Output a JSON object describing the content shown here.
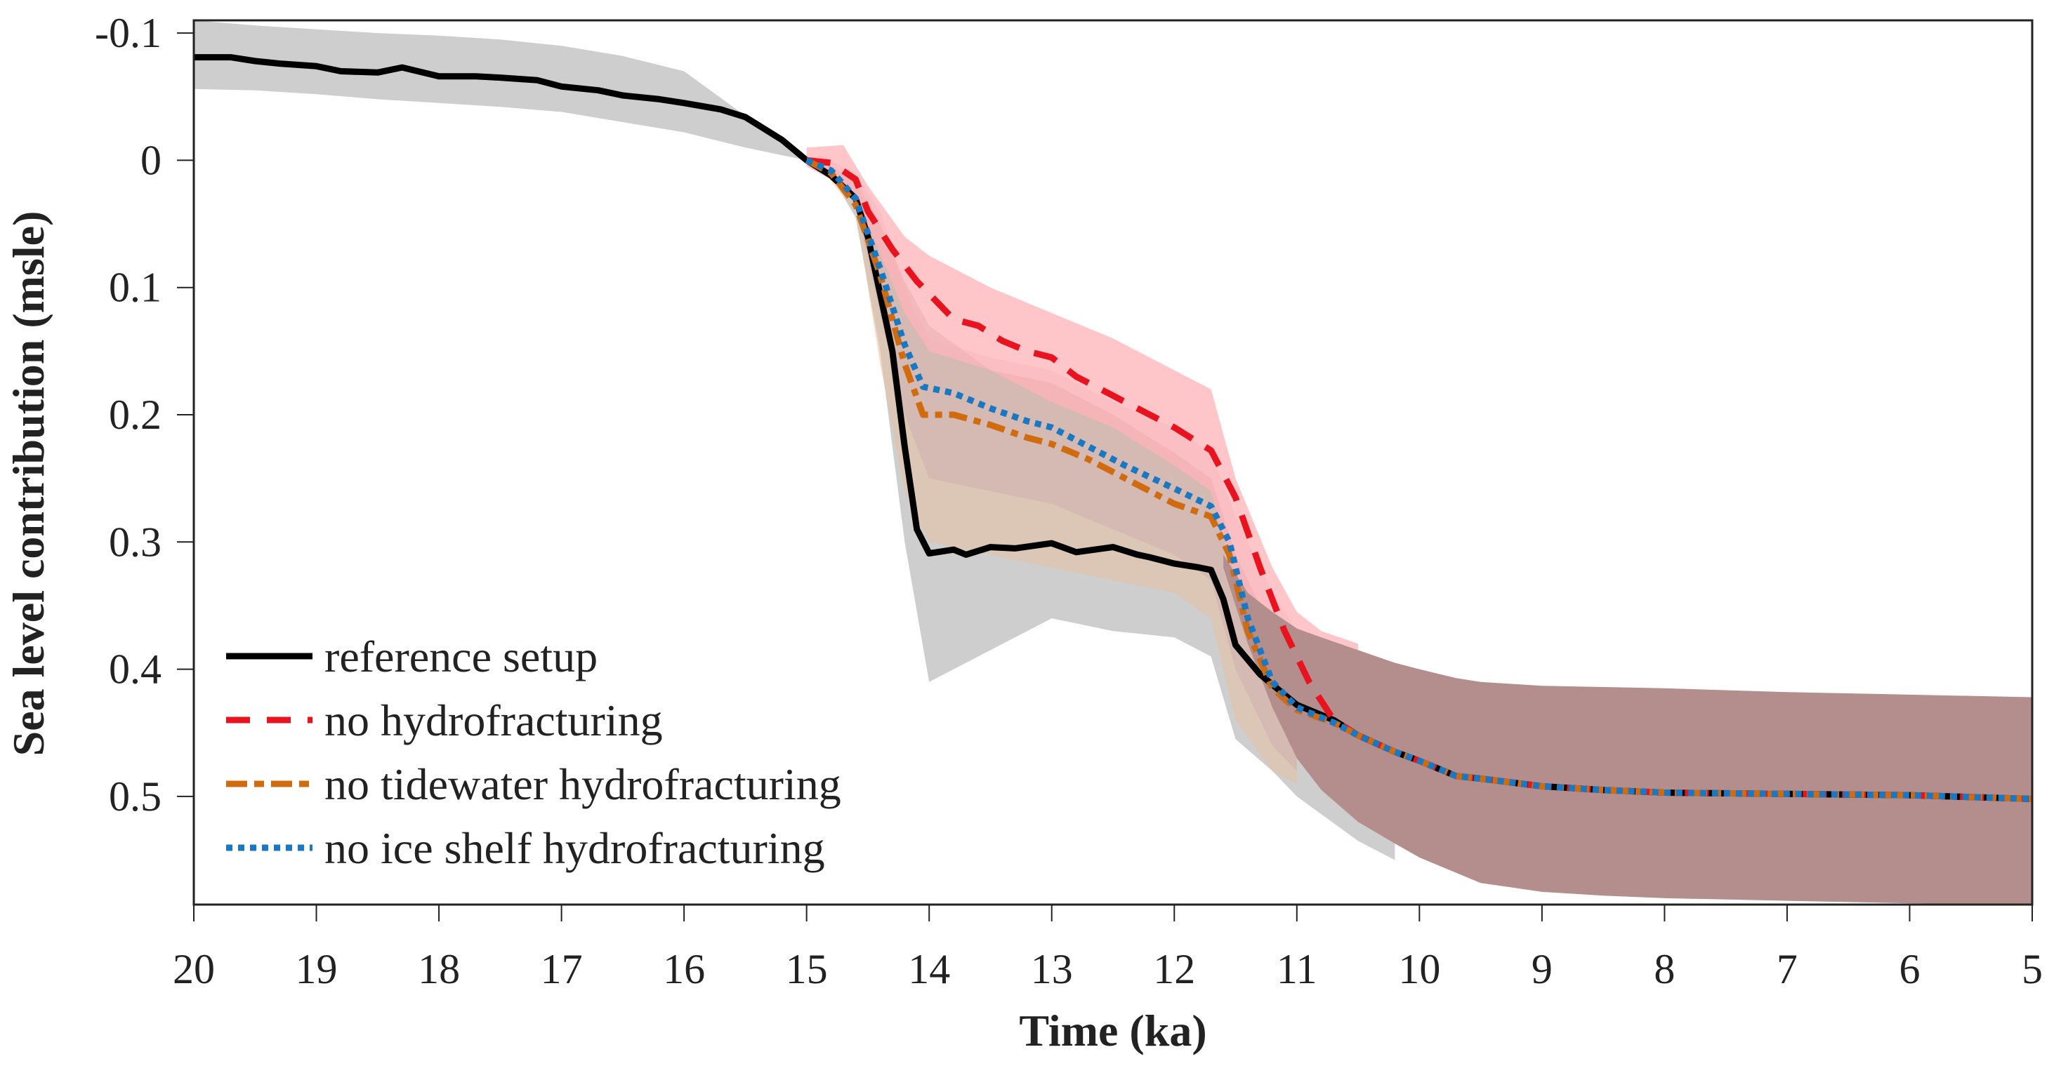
{
  "chart_data": {
    "type": "line",
    "title": "",
    "xlabel": "Time (ka)",
    "ylabel": "Sea level contribution (msle)",
    "xlim": [
      20,
      5
    ],
    "ylim": [
      -0.11,
      0.585
    ],
    "y_reversed": true,
    "x_reversed": true,
    "xticks": [
      20,
      19,
      18,
      17,
      16,
      15,
      14,
      13,
      12,
      11,
      10,
      9,
      8,
      7,
      6,
      5
    ],
    "xtick_labels": [
      "20",
      "19",
      "18",
      "17",
      "16",
      "15",
      "14",
      "13",
      "12",
      "11",
      "10",
      "9",
      "8",
      "7",
      "6",
      "5"
    ],
    "yticks": [
      -0.1,
      0,
      0.1,
      0.2,
      0.3,
      0.4,
      0.5
    ],
    "ytick_labels": [
      "-0.1",
      "0",
      "0.1",
      "0.2",
      "0.3",
      "0.4",
      "0.5"
    ],
    "grid": false,
    "legend_position": "bottom-left",
    "bands": [
      {
        "name": "reference setup range",
        "color": "#bdbdbd",
        "opacity": 0.75,
        "x": [
          20,
          19.5,
          19,
          18.5,
          18,
          17.5,
          17,
          16.5,
          16,
          15.5,
          15.2,
          15,
          14.8,
          14.6,
          14.4,
          14.2,
          14,
          13.5,
          13,
          12.5,
          12,
          11.7,
          11.5,
          11.2,
          11,
          10.5,
          10.2
        ],
        "upper": [
          -0.11,
          -0.106,
          -0.103,
          -0.1,
          -0.098,
          -0.095,
          -0.09,
          -0.082,
          -0.07,
          -0.035,
          -0.015,
          0,
          0.005,
          0.02,
          0.05,
          0.095,
          0.13,
          0.165,
          0.175,
          0.2,
          0.23,
          0.25,
          0.31,
          0.37,
          0.4,
          0.43,
          0.45
        ],
        "lower": [
          -0.056,
          -0.055,
          -0.052,
          -0.048,
          -0.045,
          -0.042,
          -0.038,
          -0.03,
          -0.022,
          -0.01,
          -0.004,
          0,
          0.012,
          0.045,
          0.15,
          0.3,
          0.41,
          0.385,
          0.36,
          0.37,
          0.375,
          0.39,
          0.455,
          0.48,
          0.5,
          0.535,
          0.55
        ]
      },
      {
        "name": "no tidewater hydrofracturing range",
        "color": "#e8bfa0",
        "opacity": 0.55,
        "x": [
          14.9,
          14.6,
          14.4,
          14.2,
          14,
          13.5,
          13,
          12.5,
          12,
          11.7,
          11.5,
          11.2,
          11
        ],
        "upper": [
          0,
          0.015,
          0.05,
          0.1,
          0.15,
          0.165,
          0.175,
          0.2,
          0.23,
          0.25,
          0.31,
          0.37,
          0.39
        ],
        "lower": [
          0.005,
          0.04,
          0.16,
          0.26,
          0.3,
          0.31,
          0.32,
          0.33,
          0.34,
          0.36,
          0.44,
          0.48,
          0.49
        ]
      },
      {
        "name": "no ice shelf hydrofracturing range",
        "color": "#c9a0b0",
        "opacity": 0.35,
        "x": [
          14.9,
          14.6,
          14.4,
          14.2,
          14,
          13.5,
          13,
          12.5,
          12,
          11.7,
          11.5,
          11.2,
          11
        ],
        "upper": [
          -0.005,
          0.01,
          0.04,
          0.1,
          0.14,
          0.155,
          0.165,
          0.19,
          0.21,
          0.23,
          0.28,
          0.34,
          0.37
        ],
        "lower": [
          0.005,
          0.035,
          0.12,
          0.2,
          0.25,
          0.26,
          0.27,
          0.29,
          0.31,
          0.33,
          0.4,
          0.46,
          0.48
        ]
      },
      {
        "name": "no hydrofracturing range",
        "color": "#ffb3b8",
        "opacity": 0.75,
        "x": [
          15,
          14.7,
          14.5,
          14.2,
          14,
          13.5,
          13,
          12.5,
          12,
          11.7,
          11.5,
          11.2,
          11,
          10.8,
          10.5
        ],
        "upper": [
          -0.01,
          -0.012,
          0.02,
          0.06,
          0.075,
          0.1,
          0.12,
          0.14,
          0.165,
          0.18,
          0.25,
          0.32,
          0.355,
          0.37,
          0.38
        ],
        "lower": [
          0.005,
          0.02,
          0.05,
          0.12,
          0.15,
          0.165,
          0.19,
          0.21,
          0.24,
          0.26,
          0.33,
          0.38,
          0.4,
          0.41,
          0.42
        ]
      },
      {
        "name": "overlapping ensemble range",
        "color": "#b38e8c",
        "opacity": 1.0,
        "x": [
          11.6,
          11.4,
          11.2,
          11,
          10.8,
          10.5,
          10.2,
          10,
          9.7,
          9.5,
          9,
          8.5,
          8,
          7,
          6,
          5
        ],
        "upper": [
          0.31,
          0.34,
          0.355,
          0.368,
          0.375,
          0.385,
          0.395,
          0.4,
          0.407,
          0.41,
          0.413,
          0.414,
          0.415,
          0.418,
          0.42,
          0.422
        ],
        "lower": [
          0.32,
          0.38,
          0.43,
          0.47,
          0.495,
          0.52,
          0.537,
          0.548,
          0.56,
          0.568,
          0.575,
          0.578,
          0.58,
          0.582,
          0.584,
          0.585
        ]
      }
    ],
    "series": [
      {
        "name": "reference setup",
        "color": "#000000",
        "style": "solid",
        "x": [
          20,
          19.7,
          19.5,
          19.3,
          19,
          18.8,
          18.5,
          18.3,
          18,
          17.7,
          17.5,
          17.2,
          17,
          16.7,
          16.5,
          16.2,
          16,
          15.7,
          15.5,
          15.2,
          15,
          14.8,
          14.6,
          14.5,
          14.4,
          14.3,
          14.2,
          14.1,
          14,
          13.8,
          13.7,
          13.5,
          13.3,
          13,
          12.8,
          12.5,
          12.3,
          12.2,
          12,
          11.8,
          11.7,
          11.6,
          11.5,
          11.3,
          11,
          10.7,
          10.5,
          10.2,
          10,
          9.7,
          9.5,
          9,
          8.5,
          8,
          7,
          6,
          5
        ],
        "y": [
          -0.081,
          -0.081,
          -0.078,
          -0.076,
          -0.074,
          -0.07,
          -0.069,
          -0.073,
          -0.066,
          -0.066,
          -0.065,
          -0.063,
          -0.058,
          -0.055,
          -0.051,
          -0.048,
          -0.045,
          -0.04,
          -0.034,
          -0.016,
          0,
          0.012,
          0.03,
          0.06,
          0.105,
          0.15,
          0.225,
          0.29,
          0.309,
          0.306,
          0.31,
          0.304,
          0.305,
          0.301,
          0.308,
          0.304,
          0.31,
          0.312,
          0.317,
          0.32,
          0.322,
          0.345,
          0.381,
          0.404,
          0.428,
          0.44,
          0.452,
          0.465,
          0.472,
          0.484,
          0.486,
          0.492,
          0.495,
          0.497,
          0.498,
          0.499,
          0.502
        ]
      },
      {
        "name": "no hydrofracturing",
        "color": "#e8131f",
        "style": "dashed",
        "x": [
          15,
          14.8,
          14.6,
          14.5,
          14.3,
          14.1,
          14,
          13.8,
          13.6,
          13.4,
          13.2,
          13,
          12.8,
          12.5,
          12.2,
          12,
          11.7,
          11.5,
          11.3,
          11.1,
          10.9,
          10.7,
          10.5,
          10.2,
          10,
          9.7,
          9.5,
          9,
          8.5,
          8,
          7,
          6,
          5
        ],
        "y": [
          0,
          0.002,
          0.015,
          0.04,
          0.07,
          0.095,
          0.105,
          0.125,
          0.13,
          0.142,
          0.15,
          0.155,
          0.17,
          0.185,
          0.2,
          0.21,
          0.228,
          0.265,
          0.32,
          0.37,
          0.41,
          0.44,
          0.452,
          0.465,
          0.472,
          0.484,
          0.486,
          0.492,
          0.495,
          0.497,
          0.498,
          0.499,
          0.502
        ]
      },
      {
        "name": "no tidewater hydrofracturing",
        "color": "#d16b0f",
        "style": "dashdot",
        "x": [
          15,
          14.8,
          14.6,
          14.4,
          14.2,
          14.05,
          13.8,
          13.5,
          13.2,
          13,
          12.7,
          12.4,
          12,
          11.7,
          11.55,
          11.4,
          11.2,
          11,
          10.7,
          10.5,
          10.2,
          10,
          9.7,
          9.5,
          9,
          8.5,
          8,
          7,
          6,
          5
        ],
        "y": [
          0,
          0.01,
          0.035,
          0.09,
          0.16,
          0.2,
          0.2,
          0.208,
          0.218,
          0.223,
          0.235,
          0.25,
          0.27,
          0.28,
          0.31,
          0.37,
          0.415,
          0.432,
          0.442,
          0.452,
          0.465,
          0.472,
          0.484,
          0.486,
          0.492,
          0.495,
          0.497,
          0.498,
          0.499,
          0.502
        ]
      },
      {
        "name": "no ice shelf hydrofracturing",
        "color": "#1a78c2",
        "style": "dotted",
        "x": [
          15,
          14.8,
          14.6,
          14.4,
          14.2,
          14.05,
          13.8,
          13.5,
          13.2,
          13,
          12.7,
          12.4,
          12,
          11.7,
          11.55,
          11.4,
          11.2,
          11,
          10.7,
          10.5,
          10.2,
          10,
          9.7,
          9.5,
          9,
          8.5,
          8,
          7,
          6,
          5
        ],
        "y": [
          0,
          0.008,
          0.03,
          0.085,
          0.145,
          0.178,
          0.183,
          0.195,
          0.205,
          0.21,
          0.225,
          0.24,
          0.258,
          0.272,
          0.3,
          0.36,
          0.41,
          0.43,
          0.442,
          0.452,
          0.465,
          0.472,
          0.484,
          0.486,
          0.492,
          0.495,
          0.497,
          0.498,
          0.499,
          0.502
        ]
      }
    ],
    "legend": [
      {
        "label": "reference setup",
        "color": "#000000",
        "style": "solid"
      },
      {
        "label": "no hydrofracturing",
        "color": "#e8131f",
        "style": "dashed"
      },
      {
        "label": "no tidewater hydrofracturing",
        "color": "#d16b0f",
        "style": "dashdot"
      },
      {
        "label": "no ice shelf hydrofracturing",
        "color": "#1a78c2",
        "style": "dotted"
      }
    ]
  }
}
